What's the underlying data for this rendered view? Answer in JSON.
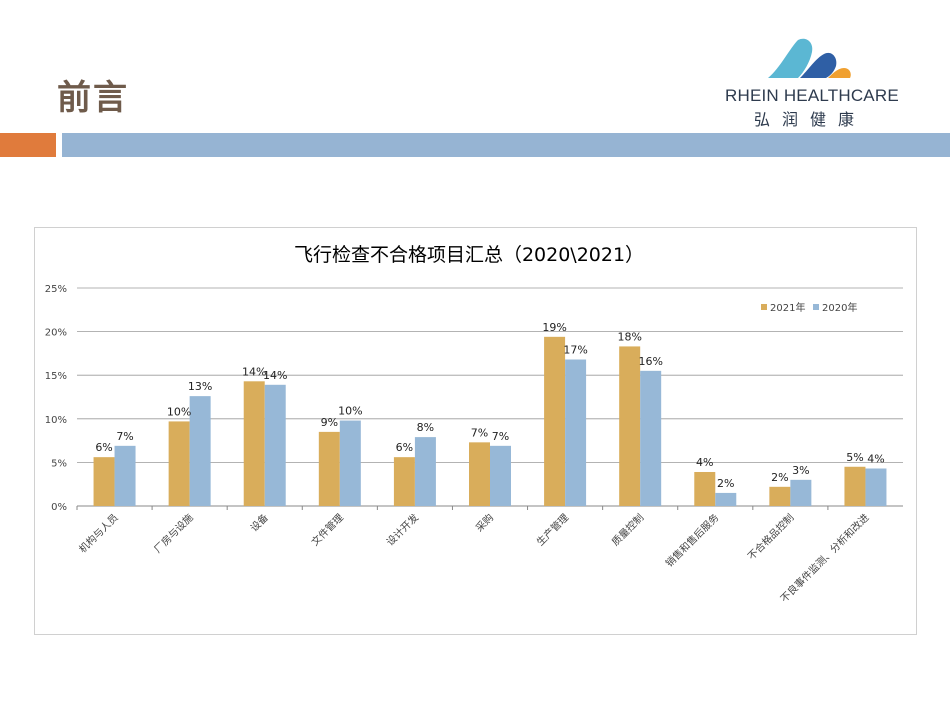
{
  "slide": {
    "title": "前言"
  },
  "logo": {
    "name": "RHEIN HEALTHCARE",
    "name_cn": "弘润健康",
    "colors": [
      "#5bb7d3",
      "#2f5fa5",
      "#f0a030"
    ]
  },
  "colors": {
    "accent_orange": "#e07b3c",
    "accent_blue": "#96b4d3",
    "series_2021": "#d9ad5b",
    "series_2020": "#97b8d7"
  },
  "chart_data": {
    "type": "bar",
    "title": "飞行检查不合格项目汇总（2020\\2021）",
    "categories": [
      "机构与人员",
      "厂房与设施",
      "设备",
      "文件管理",
      "设计开发",
      "采购",
      "生产管理",
      "质量控制",
      "销售和售后服务",
      "不合格品控制",
      "不良事件监测、分析和改进"
    ],
    "series": [
      {
        "name": "2021年",
        "values": [
          5.6,
          9.7,
          14.3,
          8.5,
          5.6,
          7.3,
          19.4,
          18.3,
          3.9,
          2.2,
          4.5
        ],
        "labels": [
          "6%",
          "10%",
          "14%",
          "9%",
          "6%",
          "7%",
          "19%",
          "18%",
          "4%",
          "2%",
          "5%"
        ]
      },
      {
        "name": "2020年",
        "values": [
          6.9,
          12.6,
          13.9,
          9.8,
          7.9,
          6.9,
          16.8,
          15.5,
          1.5,
          3.0,
          4.3
        ],
        "labels": [
          "7%",
          "13%",
          "14%",
          "10%",
          "8%",
          "7%",
          "17%",
          "16%",
          "2%",
          "3%",
          "4%"
        ]
      }
    ],
    "y_ticks": [
      "0%",
      "5%",
      "10%",
      "15%",
      "20%",
      "25%"
    ],
    "ylim": [
      0,
      25
    ],
    "grid": true,
    "legend_position": "top-right"
  }
}
